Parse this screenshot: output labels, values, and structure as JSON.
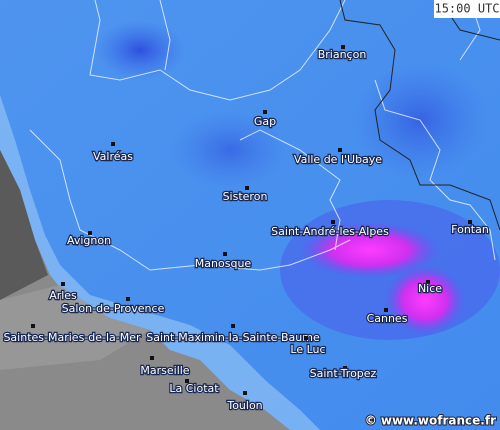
{
  "time": "15:00 UTC",
  "credit": "© www.wofrance.fr",
  "cities": [
    "Briançon",
    "Gap",
    "Valréas",
    "Valle de l'Ubaye",
    "Sisteron",
    "Saint-André-les-Alpes",
    "Fontan",
    "Avignon",
    "Manosque",
    "Nice",
    "Arles",
    "Salon-de-Provence",
    "Cannes",
    "Saintes-Maries-de-la-Mer",
    "Saint-Maximin-la-Sainte-Baume",
    "Le Luc",
    "Marseille",
    "Saint-Tropez",
    "La Ciotat",
    "Toulon"
  ]
}
